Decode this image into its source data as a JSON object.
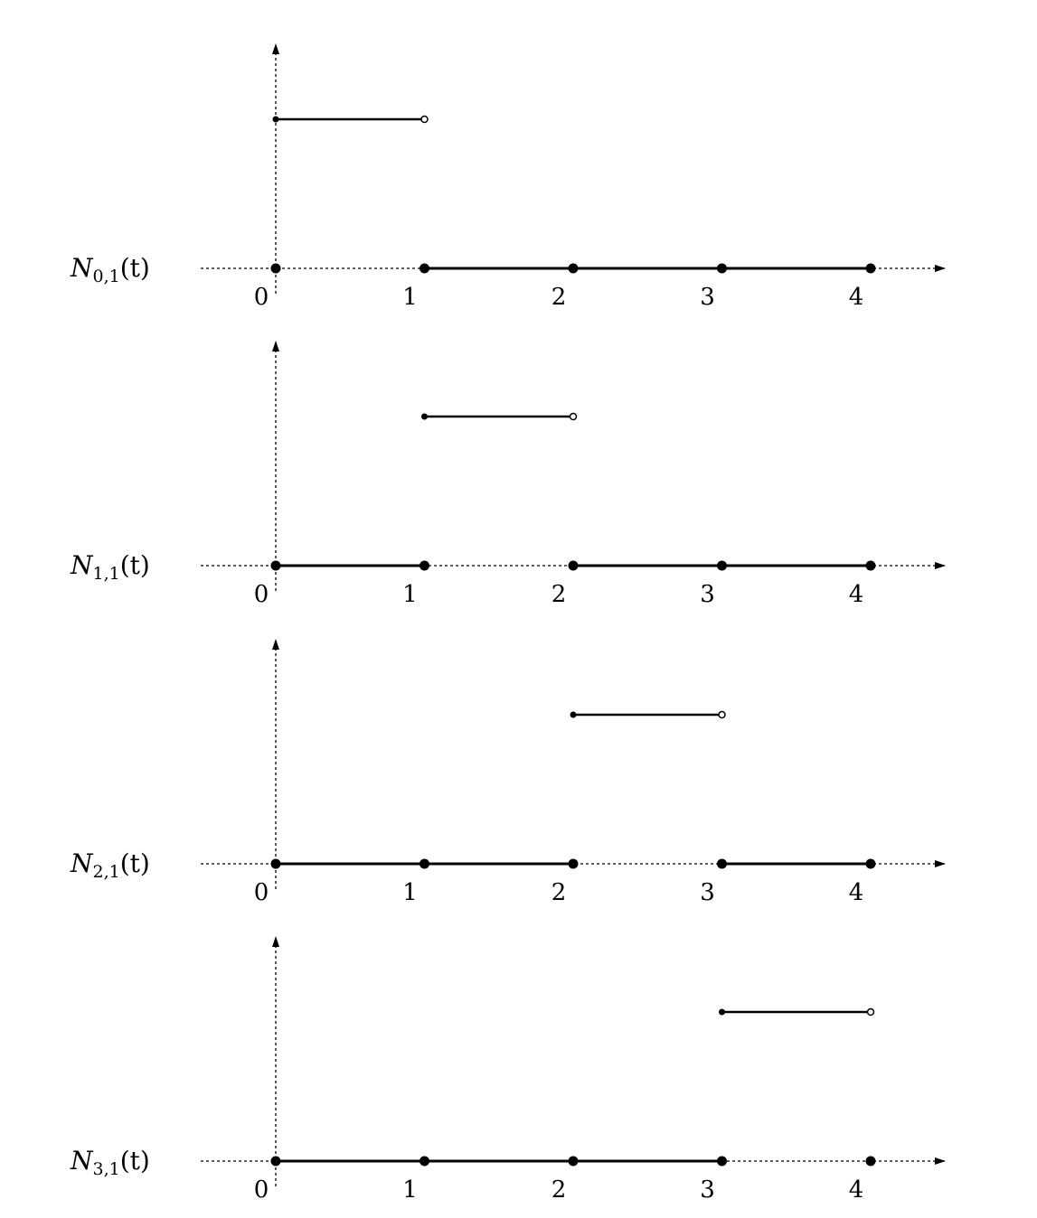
{
  "chart_data": [
    {
      "type": "line",
      "label_main": "N",
      "label_sub": "0,1",
      "label_arg": "(t)",
      "x_ticks": [
        "0",
        "1",
        "2",
        "3",
        "4"
      ],
      "xlim": [
        0,
        4
      ],
      "value_one_segment": {
        "from": 0,
        "to": 1,
        "closed_left": true,
        "open_right": true
      },
      "zero_segments": [
        [
          1,
          4
        ]
      ],
      "knots": [
        0,
        1,
        2,
        3,
        4
      ]
    },
    {
      "type": "line",
      "label_main": "N",
      "label_sub": "1,1",
      "label_arg": "(t)",
      "x_ticks": [
        "0",
        "1",
        "2",
        "3",
        "4"
      ],
      "xlim": [
        0,
        4
      ],
      "value_one_segment": {
        "from": 1,
        "to": 2,
        "closed_left": true,
        "open_right": true
      },
      "zero_segments": [
        [
          0,
          1
        ],
        [
          2,
          4
        ]
      ],
      "knots": [
        0,
        1,
        2,
        3,
        4
      ]
    },
    {
      "type": "line",
      "label_main": "N",
      "label_sub": "2,1",
      "label_arg": "(t)",
      "x_ticks": [
        "0",
        "1",
        "2",
        "3",
        "4"
      ],
      "xlim": [
        0,
        4
      ],
      "value_one_segment": {
        "from": 2,
        "to": 3,
        "closed_left": true,
        "open_right": true
      },
      "zero_segments": [
        [
          0,
          2
        ],
        [
          3,
          4
        ]
      ],
      "knots": [
        0,
        1,
        2,
        3,
        4
      ]
    },
    {
      "type": "line",
      "label_main": "N",
      "label_sub": "3,1",
      "label_arg": "(t)",
      "x_ticks": [
        "0",
        "1",
        "2",
        "3",
        "4"
      ],
      "xlim": [
        0,
        4
      ],
      "value_one_segment": {
        "from": 3,
        "to": 4,
        "closed_left": true,
        "open_right": true
      },
      "zero_segments": [
        [
          0,
          3
        ]
      ],
      "knots": [
        0,
        1,
        2,
        3,
        4
      ]
    }
  ]
}
